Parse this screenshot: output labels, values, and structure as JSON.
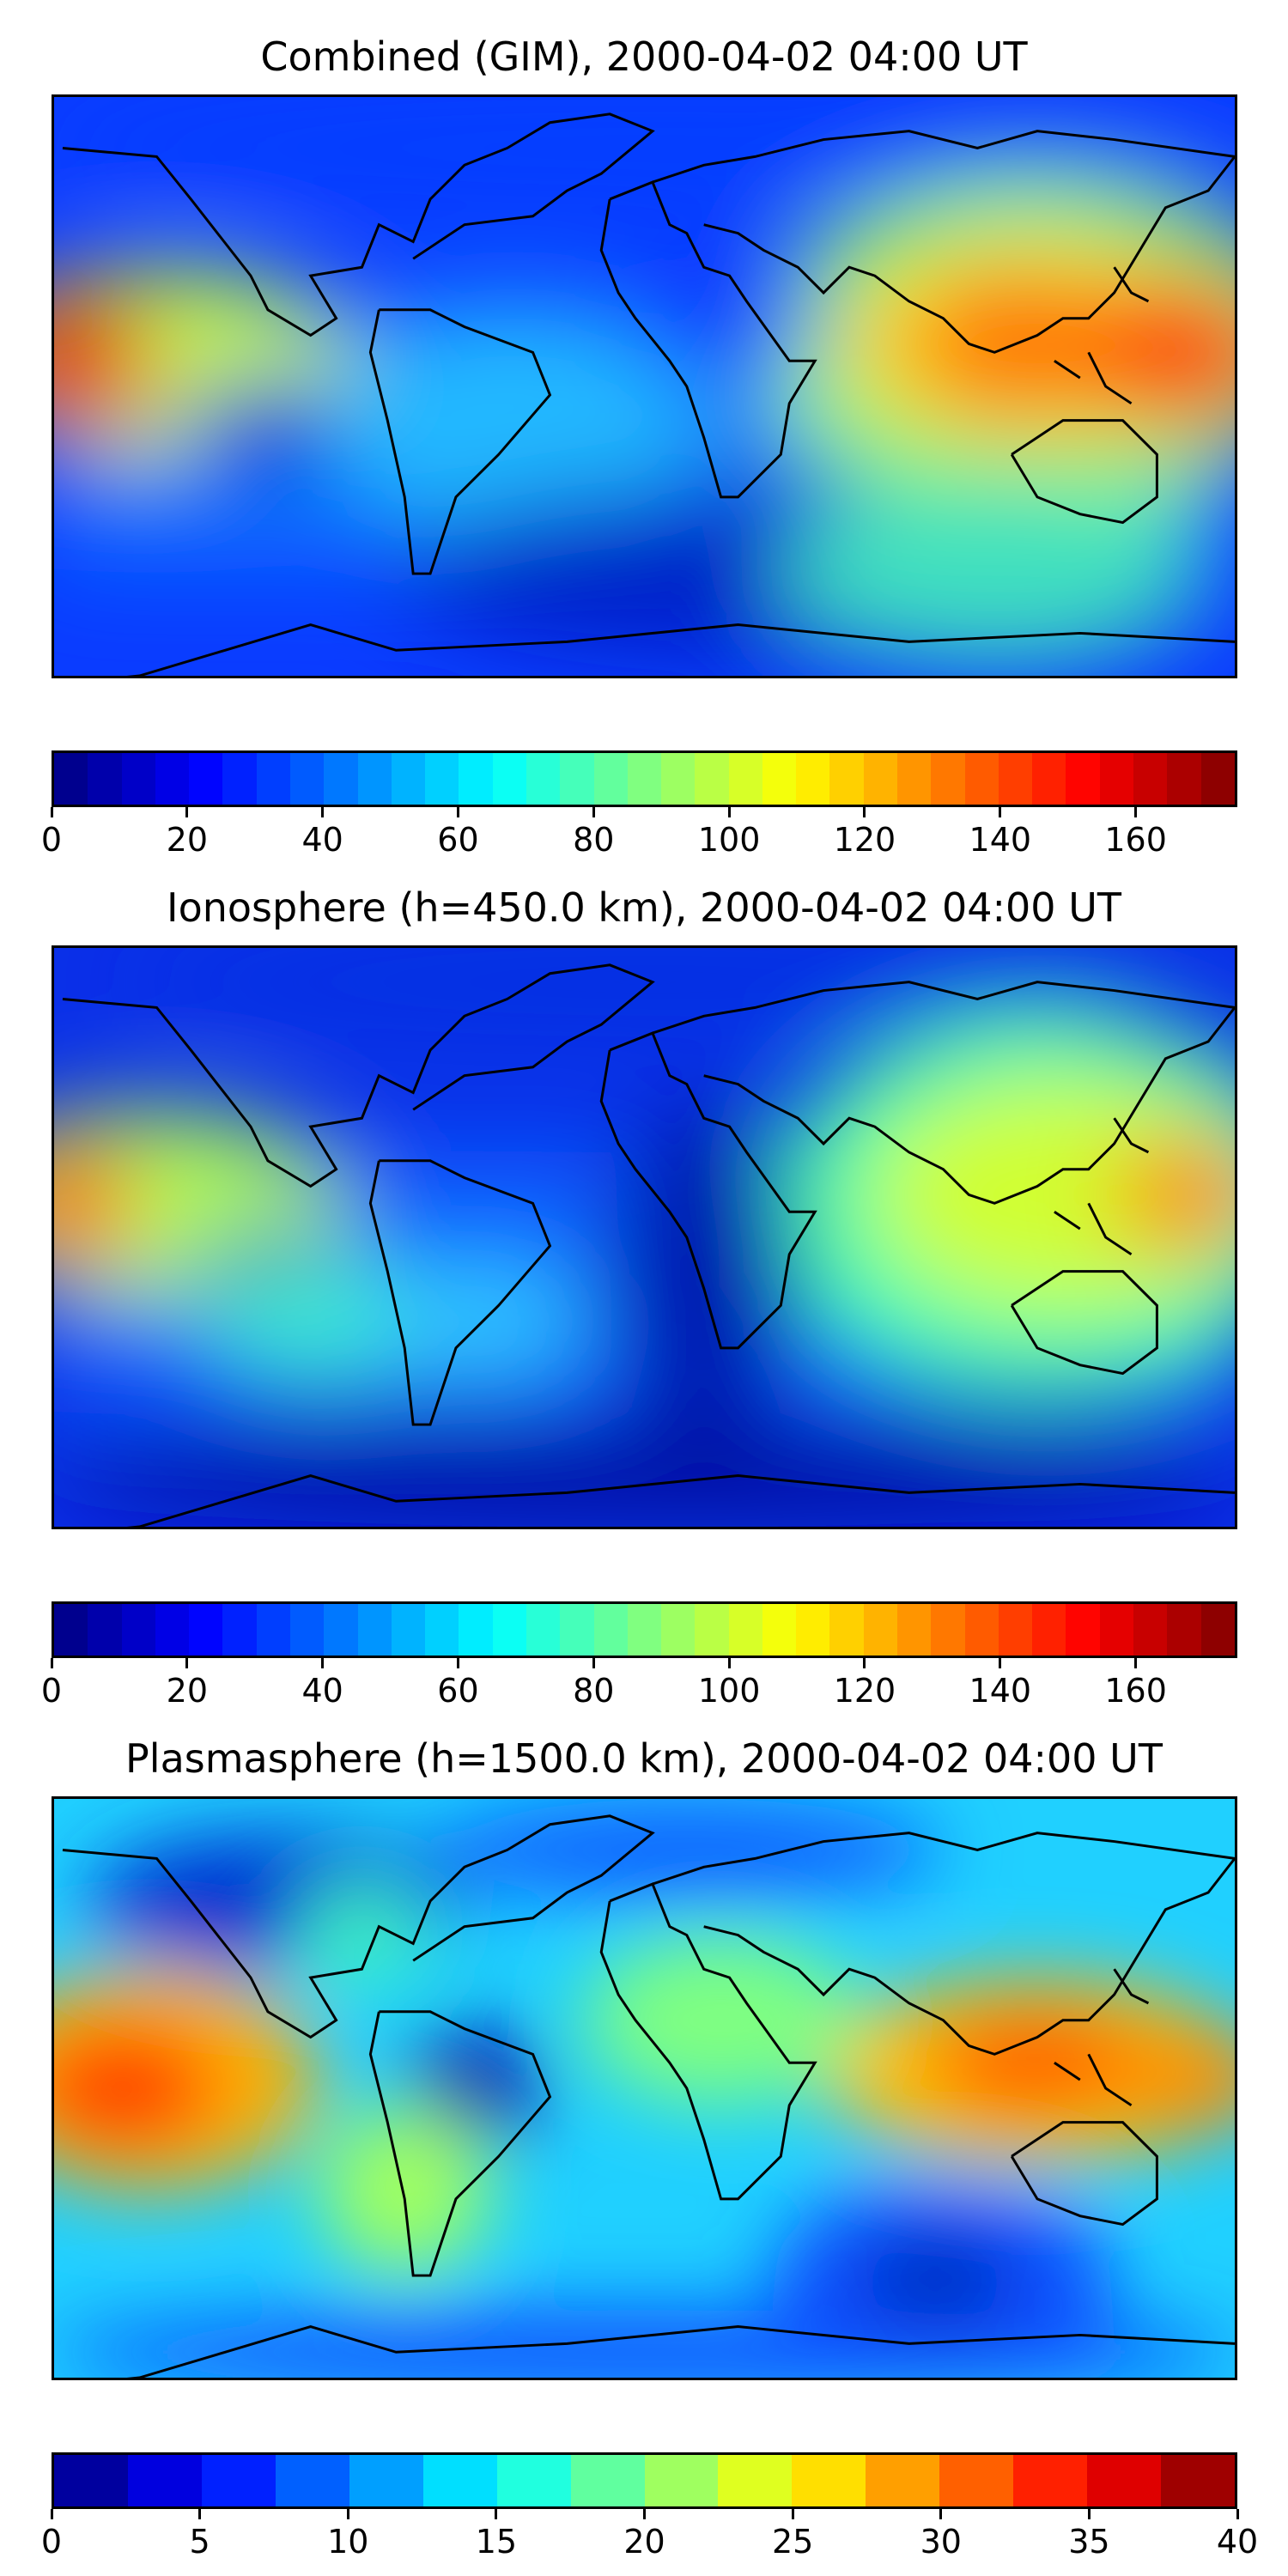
{
  "panels": [
    {
      "title": "Combined (GIM), 2000-04-02 04:00 UT",
      "colorbar": {
        "min": 0,
        "max": 175,
        "levels": 35,
        "tick_values": [
          0,
          20,
          40,
          60,
          80,
          100,
          120,
          140,
          160
        ],
        "tick_labels": [
          "0",
          "20",
          "40",
          "60",
          "80",
          "100",
          "120",
          "140",
          "160"
        ]
      }
    },
    {
      "title": "Ionosphere  (h=450.0 km), 2000-04-02 04:00 UT",
      "colorbar": {
        "min": 0,
        "max": 175,
        "levels": 35,
        "tick_values": [
          0,
          20,
          40,
          60,
          80,
          100,
          120,
          140,
          160
        ],
        "tick_labels": [
          "0",
          "20",
          "40",
          "60",
          "80",
          "100",
          "120",
          "140",
          "160"
        ]
      }
    },
    {
      "title": "Plasmasphere (h=1500.0 km), 2000-04-02 04:00 UT",
      "colorbar": {
        "min": 0,
        "max": 40,
        "levels": 16,
        "tick_values": [
          0,
          5,
          10,
          15,
          20,
          25,
          30,
          35,
          40
        ],
        "tick_labels": [
          "0",
          "5",
          "10",
          "15",
          "20",
          "25",
          "30",
          "35",
          "40"
        ]
      }
    }
  ],
  "colormap": "jet",
  "coastline_color": "#000000"
}
